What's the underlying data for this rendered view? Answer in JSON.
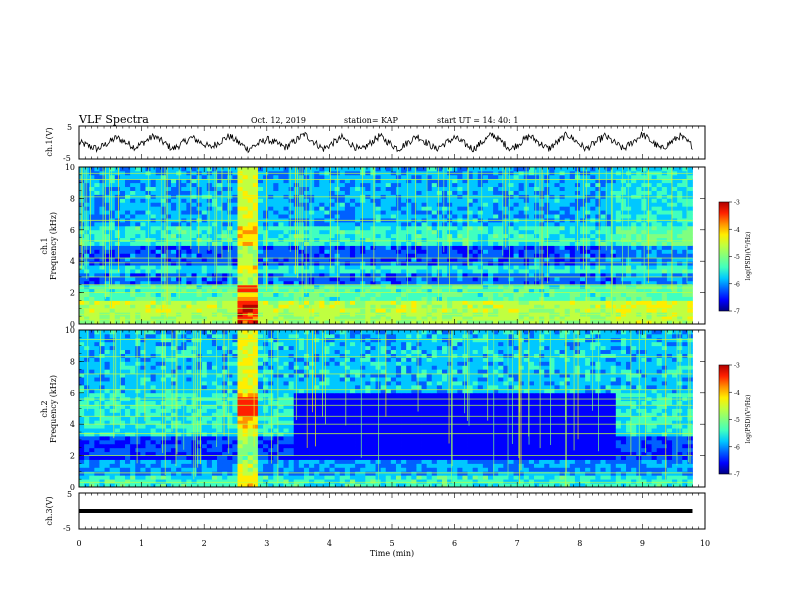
{
  "header": {
    "title": "VLF Spectra",
    "date": "Oct. 12, 2019",
    "station": "station= KAP",
    "start": "start  UT  =   14: 40: 1"
  },
  "colors": {
    "scale": [
      "#00007f",
      "#0000ff",
      "#0060ff",
      "#00c8ff",
      "#40ffc0",
      "#80ff80",
      "#c0ff40",
      "#ffee00",
      "#ff9000",
      "#ff2000",
      "#b00000"
    ],
    "trace": "#000000",
    "bar": "#000000"
  },
  "chart_data": [
    {
      "type": "line",
      "title": "VLF Spectra",
      "ylabel": "ch.1(V)",
      "ylim": [
        -5,
        5
      ],
      "yticklabels": [
        "5",
        "-5"
      ],
      "xlim": [
        0,
        10
      ],
      "description_of_series": "oscillating voltage trace, period about 0.6 min, amplitude about ±2.5 V",
      "x": [
        0,
        0.3,
        0.6,
        0.9,
        1.2,
        1.5,
        1.8,
        2.1,
        2.4,
        2.7,
        3.0,
        3.3,
        3.6,
        3.9,
        4.2,
        4.5,
        4.8,
        5.1,
        5.4,
        5.7,
        6.0,
        6.3,
        6.6,
        6.9,
        7.2,
        7.5,
        7.8,
        8.1,
        8.4,
        8.7,
        9.0,
        9.3,
        9.6,
        9.8
      ],
      "y": [
        0,
        -2,
        1.5,
        -1.5,
        2,
        -2,
        1.5,
        -1.5,
        2,
        -2,
        1,
        -1.5,
        2.5,
        -2,
        1.5,
        -2.5,
        2,
        -2,
        2,
        -2,
        1.5,
        -2,
        2.5,
        -2,
        2,
        -2,
        2.5,
        -2,
        2,
        -2,
        2.5,
        -2,
        2,
        -1
      ]
    },
    {
      "type": "heatmap",
      "ylabel": "ch.1\nFrequency (kHz)",
      "yticklabels": [
        "0",
        "2",
        "4",
        "6",
        "8",
        "10"
      ],
      "ylim": [
        0,
        10
      ],
      "xlim": [
        0,
        10
      ],
      "data_xmax": 9.8,
      "colorbar": {
        "label": "log(PSD)(V²/Hz)",
        "range": [
          -7,
          -3
        ],
        "ticklabels": [
          "-3",
          "-4",
          "-5",
          "-6",
          "-7"
        ]
      },
      "bands": [
        {
          "f0": 0,
          "f1": 0.7,
          "level": 0.55
        },
        {
          "f0": 0.7,
          "f1": 1.5,
          "level": 0.6
        },
        {
          "f0": 1.5,
          "f1": 2.6,
          "level": 0.42
        },
        {
          "f0": 2.6,
          "f1": 3.3,
          "level": 0.2
        },
        {
          "f0": 3.3,
          "f1": 3.8,
          "level": 0.35
        },
        {
          "f0": 3.8,
          "f1": 4.9,
          "level": 0.18
        },
        {
          "f0": 4.9,
          "f1": 6.2,
          "level": 0.38
        },
        {
          "f0": 6.2,
          "f1": 10,
          "level": 0.28
        }
      ],
      "lines_khz": [
        0.3,
        0.6,
        1.0,
        2.0,
        2.3,
        2.5,
        3.0,
        3.9,
        4.2,
        5.3,
        6.6,
        8.1,
        9.2,
        9.6
      ],
      "events": [
        {
          "t0": 2.55,
          "t1": 2.85,
          "boost": 0.35,
          "redband": [
            2.1,
            2.4
          ]
        },
        {
          "t0": 8.55,
          "t1": 9.8,
          "boost": 0.05
        }
      ]
    },
    {
      "type": "heatmap",
      "ylabel": "ch.2\nFrequency (kHz)",
      "yticklabels": [
        "0",
        "2",
        "4",
        "6",
        "8",
        "10"
      ],
      "ylim": [
        0,
        10
      ],
      "xlim": [
        0,
        10
      ],
      "data_xmax": 9.8,
      "colorbar": {
        "label": "log(PSD)(V²/Hz)",
        "range": [
          -7,
          -3
        ],
        "ticklabels": [
          "-3",
          "-4",
          "-5",
          "-6",
          "-7"
        ]
      },
      "bands": [
        {
          "f0": 0,
          "f1": 0.8,
          "level": 0.38
        },
        {
          "f0": 0.8,
          "f1": 1.8,
          "level": 0.25
        },
        {
          "f0": 1.8,
          "f1": 3.3,
          "level": 0.16
        },
        {
          "f0": 3.3,
          "f1": 3.8,
          "level": 0.33
        },
        {
          "f0": 3.8,
          "f1": 6.0,
          "level": 0.36
        },
        {
          "f0": 6.0,
          "f1": 10,
          "level": 0.3
        }
      ],
      "lines_khz": [
        0.3,
        0.9,
        2.0,
        3.4,
        4.0,
        4.5,
        5.2,
        5.6,
        6.2,
        7.2,
        8.3,
        9.4
      ],
      "events": [
        {
          "t0": 2.55,
          "t1": 2.85,
          "boost": 0.35,
          "redband": [
            4.4,
            5.8
          ]
        },
        {
          "t0": 3.4,
          "t1": 8.55,
          "dark": [
            1.8,
            6.0
          ]
        }
      ]
    },
    {
      "type": "line",
      "ylabel": "ch.3(V)",
      "ylim": [
        -5,
        5
      ],
      "yticklabels": [
        "5",
        "-5"
      ],
      "xlabel": "Time (min)",
      "xlim": [
        0,
        10
      ],
      "xticklabels": [
        "0",
        "1",
        "2",
        "3",
        "4",
        "5",
        "6",
        "7",
        "8",
        "9",
        "10"
      ],
      "x": [
        0,
        9.8
      ],
      "y": [
        0,
        0
      ]
    }
  ]
}
